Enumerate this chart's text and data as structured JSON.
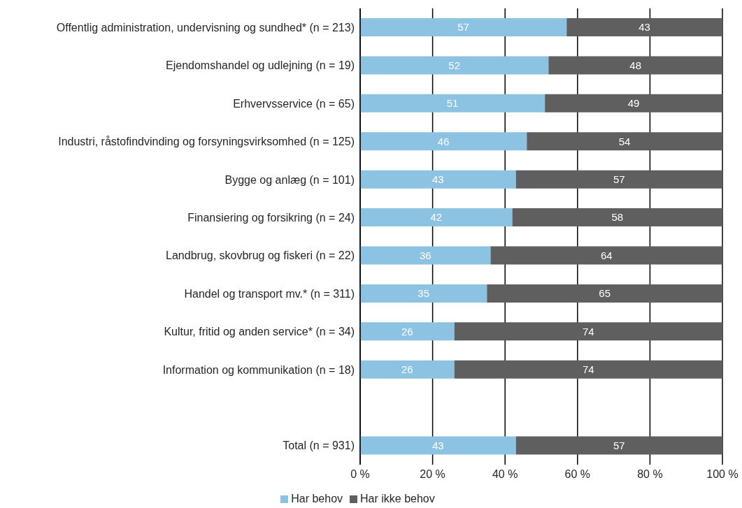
{
  "chart_data": {
    "type": "bar",
    "orientation": "horizontal",
    "stacked": true,
    "categories": [
      "Offentlig administration, undervisning og sundhed* (n = 213)",
      "Ejendomshandel og udlejning (n = 19)",
      "Erhvervsservice (n = 65)",
      "Industri, råstofindvinding og forsyningsvirksomhed (n = 125)",
      "Bygge og anlæg (n = 101)",
      "Finansiering og forsikring (n = 24)",
      "Landbrug, skovbrug og fiskeri (n = 22)",
      "Handel og transport mv.* (n = 311)",
      "Kultur, fritid og anden service* (n = 34)",
      "Information og kommunikation (n = 18)",
      null,
      "Total (n = 931)"
    ],
    "series": [
      {
        "name": "Har behov",
        "color": "#8cc3e2",
        "values": [
          57,
          52,
          51,
          46,
          43,
          42,
          36,
          35,
          26,
          26,
          null,
          43
        ]
      },
      {
        "name": "Har ikke behov",
        "color": "#5f5f5f",
        "values": [
          43,
          48,
          49,
          54,
          57,
          58,
          64,
          65,
          74,
          74,
          null,
          57
        ]
      }
    ],
    "xlim": [
      0,
      100
    ],
    "xticks": [
      {
        "value": 0,
        "label": "0 %"
      },
      {
        "value": 20,
        "label": "20 %"
      },
      {
        "value": 40,
        "label": "40 %"
      },
      {
        "value": 60,
        "label": "60 %"
      },
      {
        "value": 80,
        "label": "80 %"
      },
      {
        "value": 100,
        "label": "100 %"
      }
    ],
    "grid": "x",
    "legend": "bottom",
    "data_labels": true
  }
}
